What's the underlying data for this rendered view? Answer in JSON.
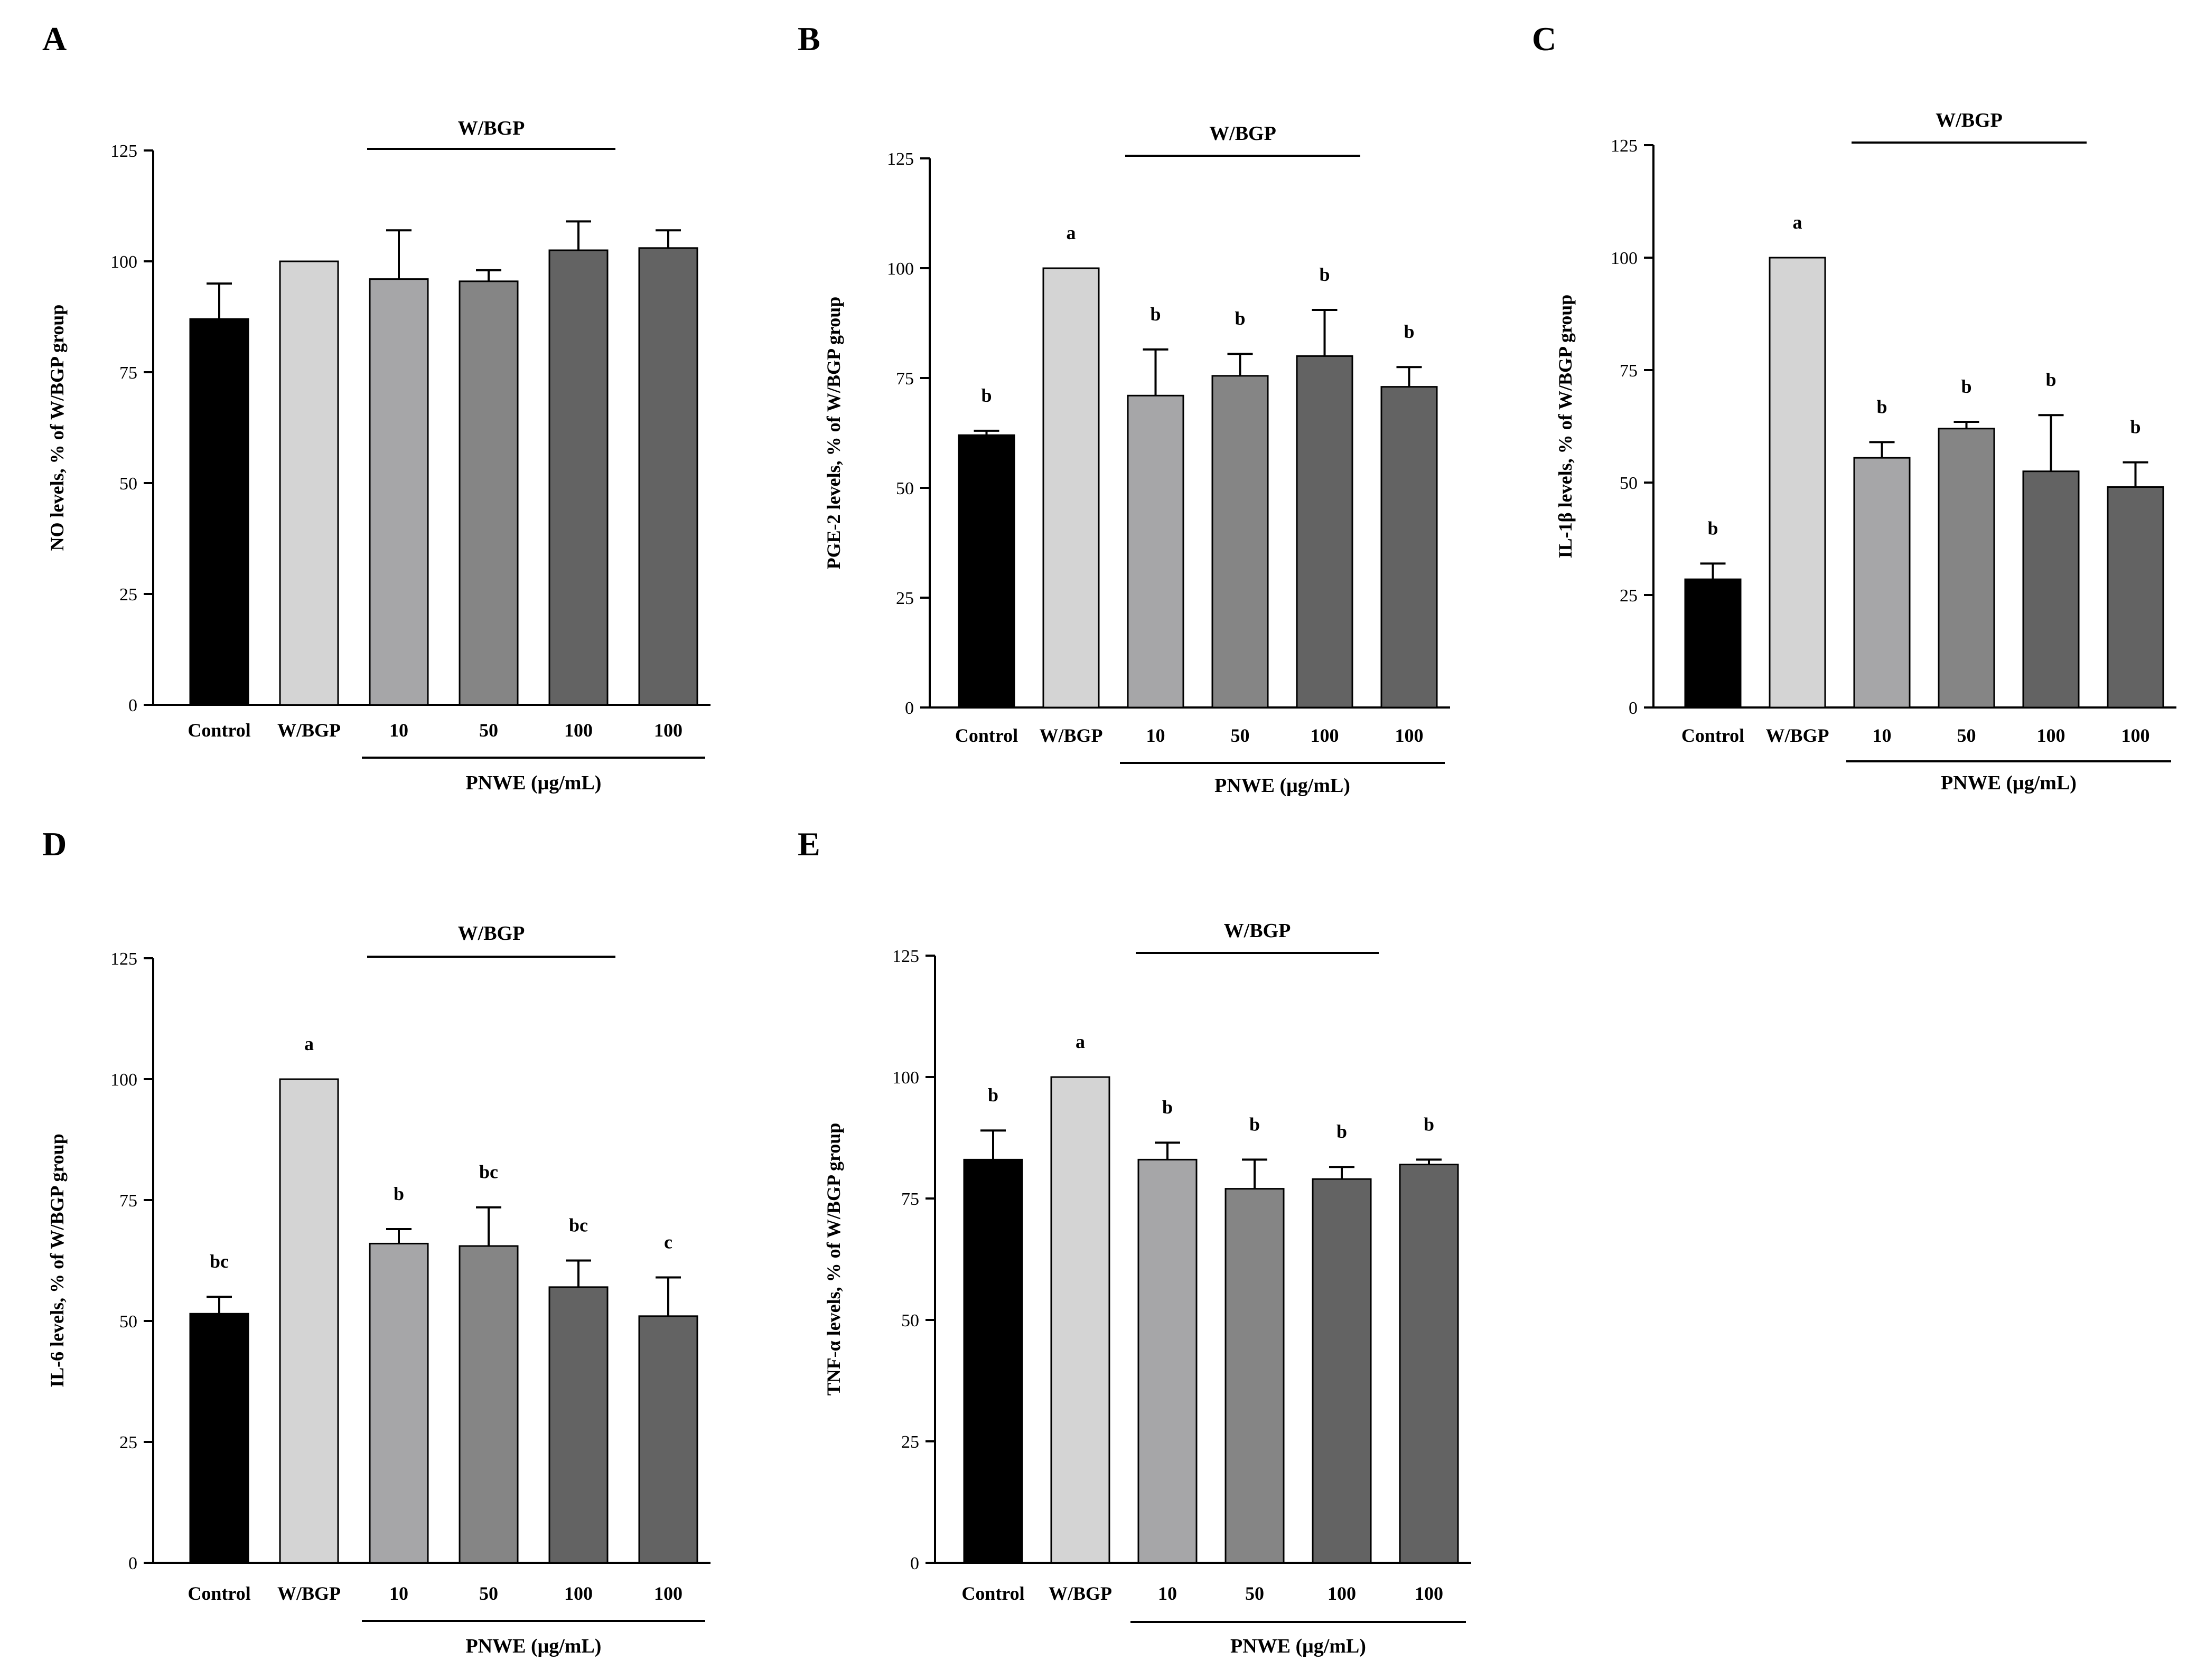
{
  "chart_data": [
    {
      "panel": "A",
      "type": "bar",
      "ylabel": "NO levels, % of W/BGP group",
      "ylim": [
        0,
        125
      ],
      "yticks": [
        0,
        25,
        50,
        75,
        100,
        125
      ],
      "categories": [
        "Control",
        "W/BGP",
        "10",
        "50",
        "100",
        "100"
      ],
      "values": [
        87,
        100,
        96,
        95.5,
        102.5,
        103
      ],
      "errors": [
        8,
        0,
        11,
        2.5,
        6.5,
        4
      ],
      "letters": [
        "",
        "",
        "",
        "",
        "",
        ""
      ],
      "colors": [
        "#000000",
        "#d4d4d4",
        "#a6a6a8",
        "#858585",
        "#636363",
        "#636363"
      ],
      "group_label": "W/BGP",
      "x_group_label": "PNWE (μg/mL)"
    },
    {
      "panel": "B",
      "type": "bar",
      "ylabel": "PGE-2 levels, % of W/BGP group",
      "ylim": [
        0,
        125
      ],
      "yticks": [
        0,
        25,
        50,
        75,
        100,
        125
      ],
      "categories": [
        "Control",
        "W/BGP",
        "10",
        "50",
        "100",
        "100"
      ],
      "values": [
        62,
        100,
        71,
        75.5,
        80,
        73
      ],
      "errors": [
        1,
        0,
        10.5,
        5,
        10.5,
        4.5
      ],
      "letters": [
        "b",
        "a",
        "b",
        "b",
        "b",
        "b"
      ],
      "colors": [
        "#000000",
        "#d4d4d4",
        "#a6a6a8",
        "#858585",
        "#636363",
        "#636363"
      ],
      "group_label": "W/BGP",
      "x_group_label": "PNWE (μg/mL)"
    },
    {
      "panel": "C",
      "type": "bar",
      "ylabel": "IL-1β levels, % of W/BGP group",
      "ylim": [
        0,
        125
      ],
      "yticks": [
        0,
        25,
        50,
        75,
        100,
        125
      ],
      "categories": [
        "Control",
        "W/BGP",
        "10",
        "50",
        "100",
        "100"
      ],
      "values": [
        28.5,
        100,
        55.5,
        62,
        52.5,
        49
      ],
      "errors": [
        3.5,
        0,
        3.5,
        1.5,
        12.5,
        5.5
      ],
      "letters": [
        "b",
        "a",
        "b",
        "b",
        "b",
        "b"
      ],
      "colors": [
        "#000000",
        "#d4d4d4",
        "#a6a6a8",
        "#858585",
        "#636363",
        "#636363"
      ],
      "group_label": "W/BGP",
      "x_group_label": "PNWE (μg/mL)"
    },
    {
      "panel": "D",
      "type": "bar",
      "ylabel": "IL-6 levels, % of W/BGP group",
      "ylim": [
        0,
        125
      ],
      "yticks": [
        0,
        25,
        50,
        75,
        100,
        125
      ],
      "categories": [
        "Control",
        "W/BGP",
        "10",
        "50",
        "100",
        "100"
      ],
      "values": [
        51.5,
        100,
        66,
        65.5,
        57,
        51
      ],
      "errors": [
        3.5,
        0,
        3,
        8,
        5.5,
        8
      ],
      "letters": [
        "bc",
        "a",
        "b",
        "bc",
        "bc",
        "c"
      ],
      "colors": [
        "#000000",
        "#d4d4d4",
        "#a6a6a8",
        "#858585",
        "#636363",
        "#636363"
      ],
      "group_label": "W/BGP",
      "x_group_label": "PNWE (μg/mL)"
    },
    {
      "panel": "E",
      "type": "bar",
      "ylabel": "TNF-α levels, % of W/BGP group",
      "ylim": [
        0,
        125
      ],
      "yticks": [
        0,
        25,
        50,
        75,
        100,
        125
      ],
      "categories": [
        "Control",
        "W/BGP",
        "10",
        "50",
        "100",
        "100"
      ],
      "values": [
        83,
        100,
        83,
        77,
        79,
        82
      ],
      "errors": [
        6,
        0,
        3.5,
        6,
        2.5,
        1
      ],
      "letters": [
        "b",
        "a",
        "b",
        "b",
        "b",
        "b"
      ],
      "colors": [
        "#000000",
        "#d4d4d4",
        "#a6a6a8",
        "#858585",
        "#636363",
        "#636363"
      ],
      "group_label": "W/BGP",
      "x_group_label": "PNWE (μg/mL)"
    }
  ]
}
